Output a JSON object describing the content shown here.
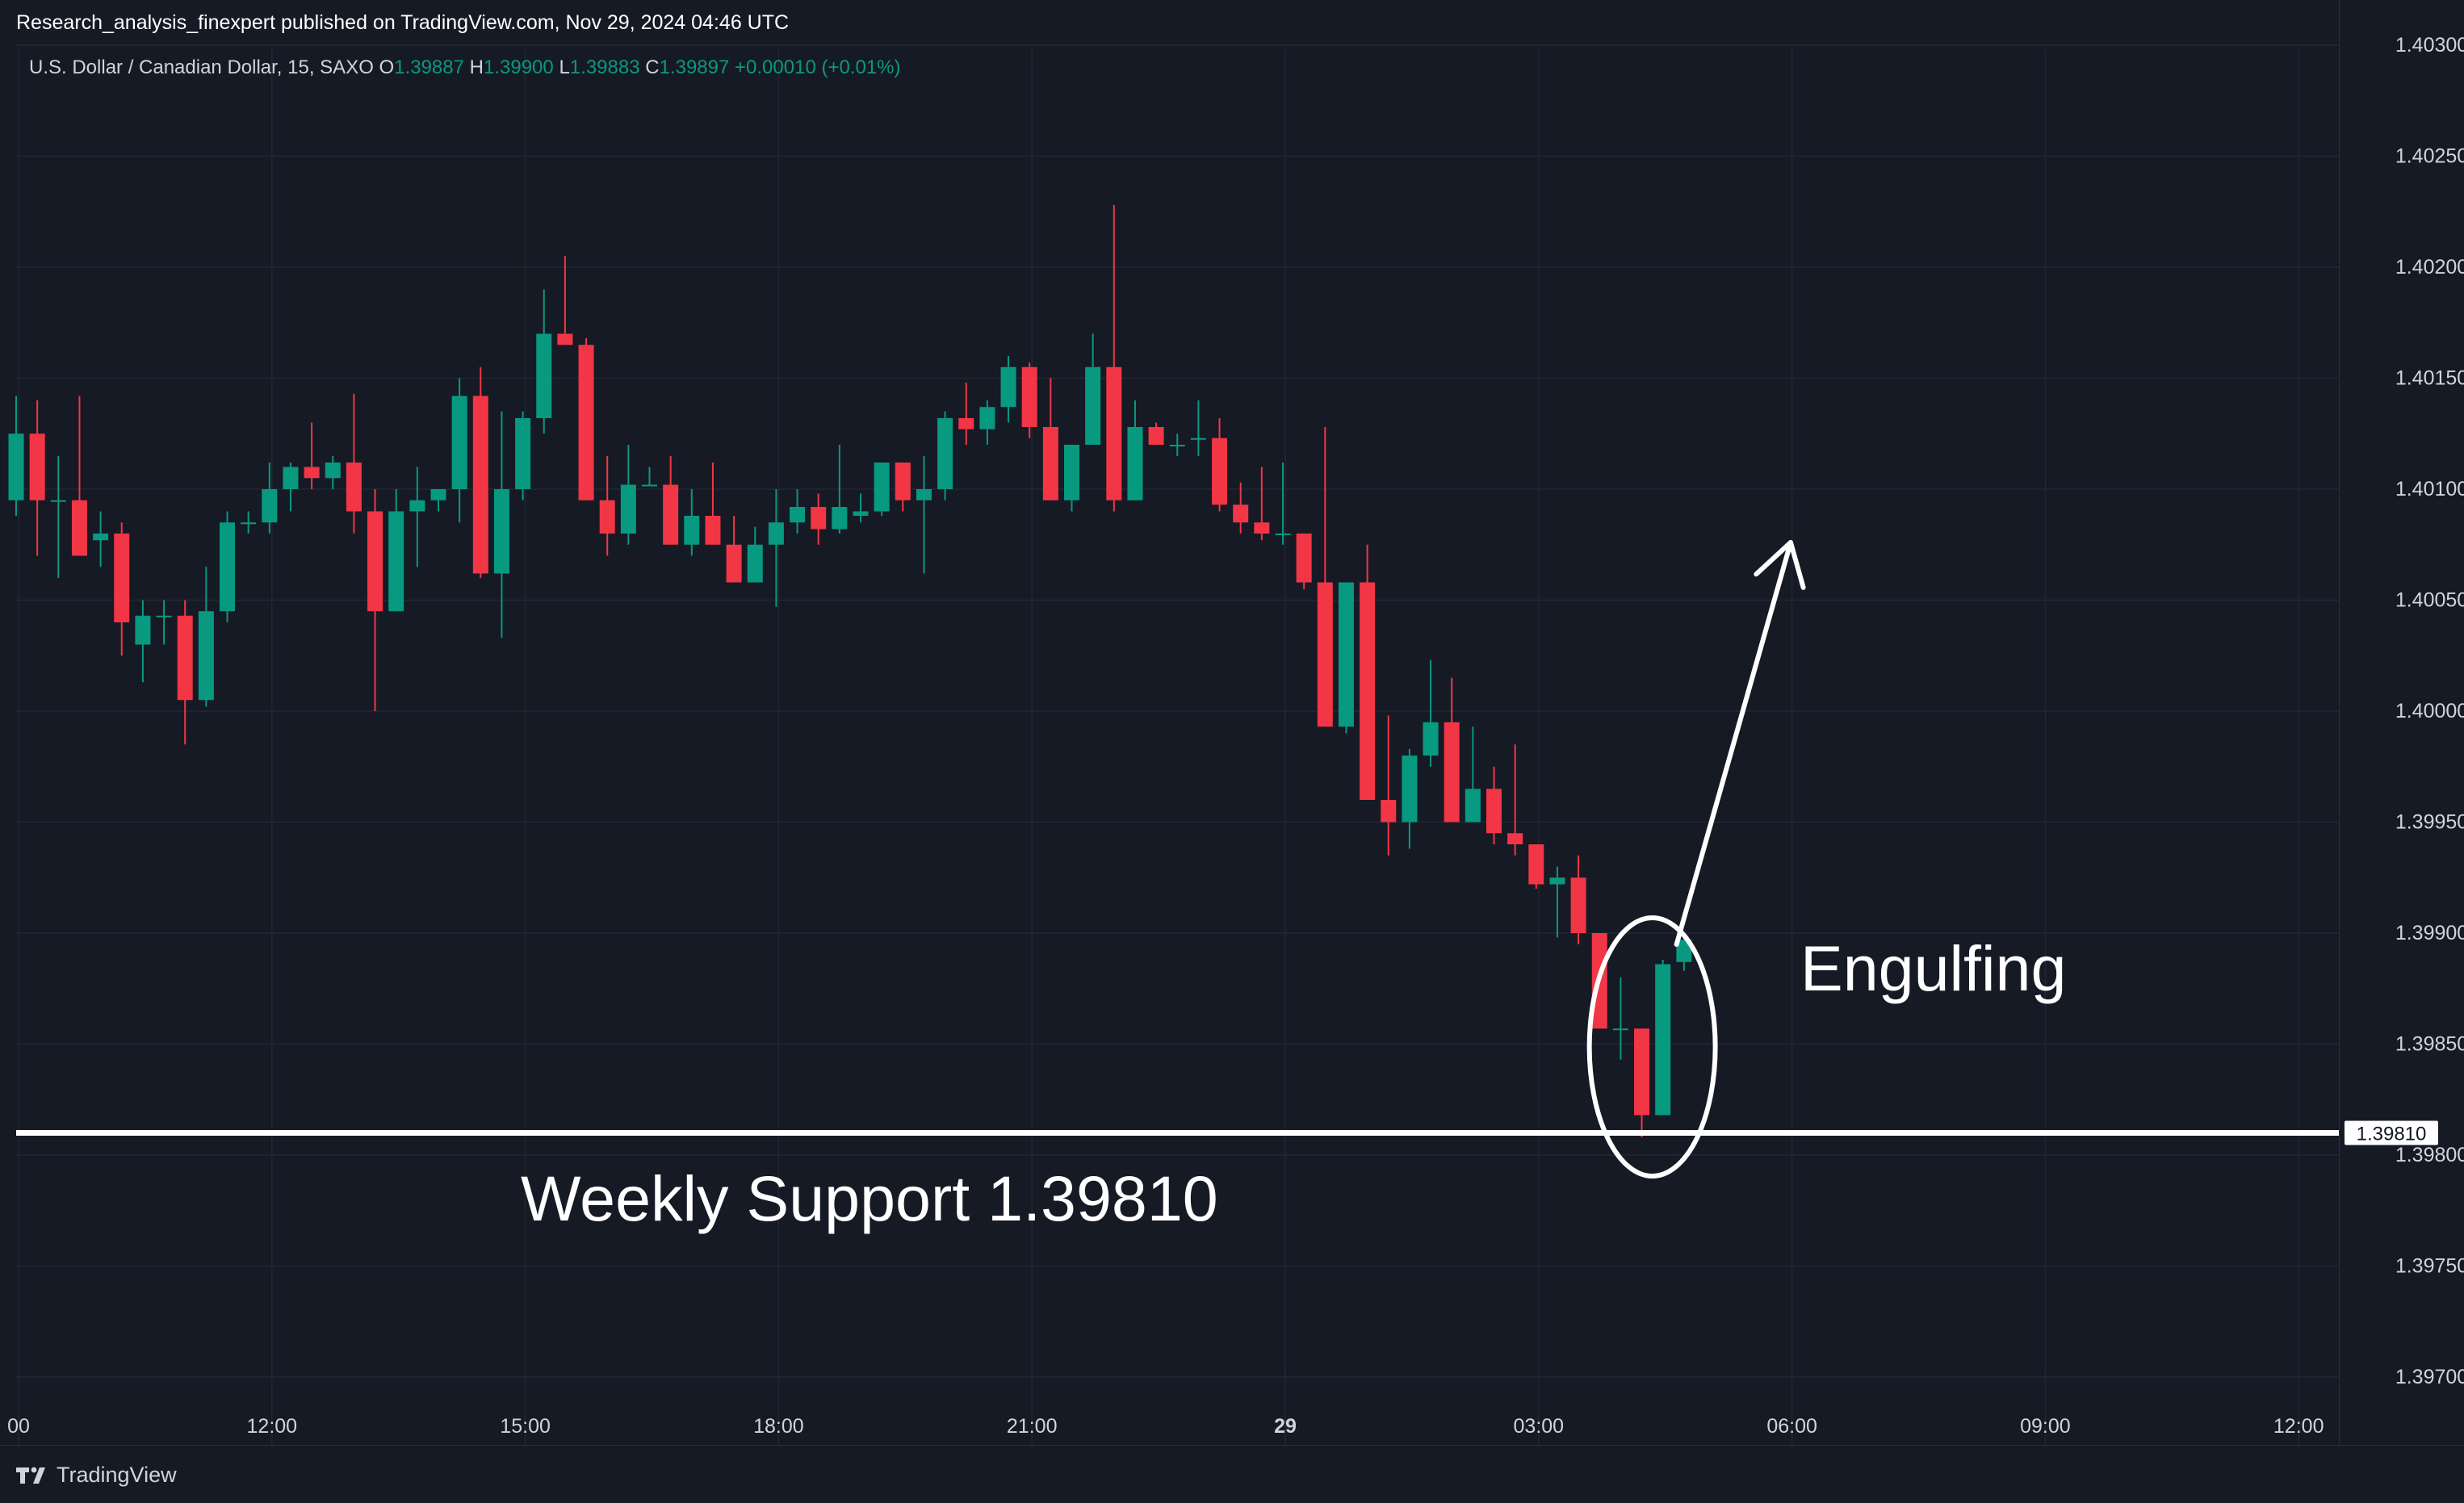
{
  "header": {
    "published_by": "Research_analysis_finexpert published on TradingView.com, Nov 29, 2024 04:46 UTC"
  },
  "legend": {
    "symbol": "U.S. Dollar / Canadian Dollar, 15, SAXO",
    "o_label": "O",
    "o_value": "1.39887",
    "h_label": "H",
    "h_value": "1.39900",
    "l_label": "L",
    "l_value": "1.39883",
    "c_label": "C",
    "c_value": "1.39897",
    "change": "+0.00010 (+0.01%)"
  },
  "colors": {
    "up": "#089981",
    "down": "#f23645",
    "background": "#161a25",
    "grid": "#232734",
    "text": "#d1d4dc",
    "annotation": "#ffffff"
  },
  "footer": {
    "brand": "TradingView"
  },
  "chart_data": {
    "type": "candlestick",
    "symbol": "USDCAD",
    "timeframe": "15",
    "ylim": [
      1.3968,
      1.403
    ],
    "y_ticks": [
      "1.39700",
      "1.39750",
      "1.39800",
      "1.39850",
      "1.39900",
      "1.39950",
      "1.40000",
      "1.40050",
      "1.40100",
      "1.40150",
      "1.40200",
      "1.40250",
      "1.40300"
    ],
    "y_tick_values": [
      1.397,
      1.3975,
      1.398,
      1.3985,
      1.399,
      1.3995,
      1.4,
      1.4005,
      1.401,
      1.4015,
      1.402,
      1.4025,
      1.403
    ],
    "x_ticks": [
      {
        "label": "00",
        "index": 0,
        "bold": false
      },
      {
        "label": "12:00",
        "index": 12,
        "bold": false
      },
      {
        "label": "15:00",
        "index": 24,
        "bold": false
      },
      {
        "label": "18:00",
        "index": 36,
        "bold": false
      },
      {
        "label": "21:00",
        "index": 48,
        "bold": false
      },
      {
        "label": "29",
        "index": 60,
        "bold": true
      },
      {
        "label": "03:00",
        "index": 72,
        "bold": false
      },
      {
        "label": "06:00",
        "index": 84,
        "bold": false
      },
      {
        "label": "09:00",
        "index": 96,
        "bold": false
      },
      {
        "label": "12:00",
        "index": 108,
        "bold": false
      }
    ],
    "ohlc": [
      [
        1.40095,
        1.40142,
        1.40088,
        1.40125
      ],
      [
        1.40125,
        1.4014,
        1.4007,
        1.40095
      ],
      [
        1.40095,
        1.40115,
        1.4006,
        1.40095
      ],
      [
        1.40095,
        1.40142,
        1.4007,
        1.4007
      ],
      [
        1.40077,
        1.4009,
        1.40065,
        1.4008
      ],
      [
        1.4008,
        1.40085,
        1.40025,
        1.4004
      ],
      [
        1.4003,
        1.4005,
        1.40013,
        1.40043
      ],
      [
        1.40043,
        1.4005,
        1.4003,
        1.40043
      ],
      [
        1.40043,
        1.4005,
        1.39985,
        1.40005
      ],
      [
        1.40005,
        1.40065,
        1.40002,
        1.40045
      ],
      [
        1.40045,
        1.4009,
        1.4004,
        1.40085
      ],
      [
        1.40085,
        1.4009,
        1.4008,
        1.40085
      ],
      [
        1.40085,
        1.40112,
        1.4008,
        1.401
      ],
      [
        1.401,
        1.40112,
        1.4009,
        1.4011
      ],
      [
        1.4011,
        1.4013,
        1.401,
        1.40105
      ],
      [
        1.40105,
        1.40115,
        1.401,
        1.40112
      ],
      [
        1.40112,
        1.40143,
        1.4008,
        1.4009
      ],
      [
        1.4009,
        1.401,
        1.4,
        1.40045
      ],
      [
        1.40045,
        1.401,
        1.40045,
        1.4009
      ],
      [
        1.4009,
        1.4011,
        1.40065,
        1.40095
      ],
      [
        1.40095,
        1.401,
        1.4009,
        1.401
      ],
      [
        1.401,
        1.4015,
        1.40085,
        1.40142
      ],
      [
        1.40142,
        1.40155,
        1.4006,
        1.40062
      ],
      [
        1.40062,
        1.40135,
        1.40033,
        1.401
      ],
      [
        1.401,
        1.40135,
        1.40095,
        1.40132
      ],
      [
        1.40132,
        1.4019,
        1.40125,
        1.4017
      ],
      [
        1.4017,
        1.40205,
        1.40165,
        1.40165
      ],
      [
        1.40165,
        1.40168,
        1.40095,
        1.40095
      ],
      [
        1.40095,
        1.40115,
        1.4007,
        1.4008
      ],
      [
        1.4008,
        1.4012,
        1.40075,
        1.40102
      ],
      [
        1.40102,
        1.4011,
        1.40102,
        1.40102
      ],
      [
        1.40102,
        1.40115,
        1.40075,
        1.40075
      ],
      [
        1.40075,
        1.401,
        1.4007,
        1.40088
      ],
      [
        1.40088,
        1.40112,
        1.40075,
        1.40075
      ],
      [
        1.40075,
        1.40088,
        1.40058,
        1.40058
      ],
      [
        1.40058,
        1.40083,
        1.40058,
        1.40075
      ],
      [
        1.40075,
        1.401,
        1.40047,
        1.40085
      ],
      [
        1.40085,
        1.401,
        1.4008,
        1.40092
      ],
      [
        1.40092,
        1.40098,
        1.40075,
        1.40082
      ],
      [
        1.40082,
        1.4012,
        1.4008,
        1.40092
      ],
      [
        1.40088,
        1.40098,
        1.40085,
        1.4009
      ],
      [
        1.4009,
        1.40112,
        1.40088,
        1.40112
      ],
      [
        1.40112,
        1.40112,
        1.4009,
        1.40095
      ],
      [
        1.40095,
        1.40115,
        1.40062,
        1.401
      ],
      [
        1.401,
        1.40135,
        1.40095,
        1.40132
      ],
      [
        1.40132,
        1.40148,
        1.4012,
        1.40127
      ],
      [
        1.40127,
        1.4014,
        1.4012,
        1.40137
      ],
      [
        1.40137,
        1.4016,
        1.4013,
        1.40155
      ],
      [
        1.40155,
        1.40157,
        1.40123,
        1.40128
      ],
      [
        1.40128,
        1.4015,
        1.40095,
        1.40095
      ],
      [
        1.40095,
        1.4012,
        1.4009,
        1.4012
      ],
      [
        1.4012,
        1.4017,
        1.4012,
        1.40155
      ],
      [
        1.40155,
        1.40228,
        1.4009,
        1.40095
      ],
      [
        1.40095,
        1.4014,
        1.40095,
        1.40128
      ],
      [
        1.40128,
        1.4013,
        1.4012,
        1.4012
      ],
      [
        1.4012,
        1.40125,
        1.40115,
        1.4012
      ],
      [
        1.40123,
        1.4014,
        1.40115,
        1.40123
      ],
      [
        1.40123,
        1.40132,
        1.4009,
        1.40093
      ],
      [
        1.40093,
        1.40103,
        1.4008,
        1.40085
      ],
      [
        1.40085,
        1.4011,
        1.40077,
        1.4008
      ],
      [
        1.4008,
        1.40112,
        1.40075,
        1.4008
      ],
      [
        1.4008,
        1.4008,
        1.40055,
        1.40058
      ],
      [
        1.40058,
        1.40128,
        1.39995,
        1.39993
      ],
      [
        1.39993,
        1.40058,
        1.3999,
        1.40058
      ],
      [
        1.40058,
        1.40075,
        1.3996,
        1.3996
      ],
      [
        1.3996,
        1.39998,
        1.39935,
        1.3995
      ],
      [
        1.3995,
        1.39983,
        1.39938,
        1.3998
      ],
      [
        1.3998,
        1.40023,
        1.39975,
        1.39995
      ],
      [
        1.39995,
        1.40015,
        1.3995,
        1.3995
      ],
      [
        1.3995,
        1.39993,
        1.3995,
        1.39965
      ],
      [
        1.39965,
        1.39975,
        1.3994,
        1.39945
      ],
      [
        1.39945,
        1.39985,
        1.39935,
        1.3994
      ],
      [
        1.3994,
        1.3994,
        1.3992,
        1.39922
      ],
      [
        1.39922,
        1.3993,
        1.39898,
        1.39925
      ],
      [
        1.39925,
        1.39935,
        1.39895,
        1.399
      ],
      [
        1.399,
        1.399,
        1.39857,
        1.39857
      ],
      [
        1.39857,
        1.3988,
        1.39843,
        1.39857
      ],
      [
        1.39857,
        1.39857,
        1.39808,
        1.39818
      ],
      [
        1.39818,
        1.39888,
        1.39818,
        1.39886
      ],
      [
        1.39887,
        1.399,
        1.39883,
        1.39897
      ]
    ],
    "support_line": {
      "price": 1.3981,
      "label": "1.39810"
    },
    "annotations": {
      "support_text": "Weekly Support 1.39810",
      "pattern_text": "Engulfing"
    }
  }
}
